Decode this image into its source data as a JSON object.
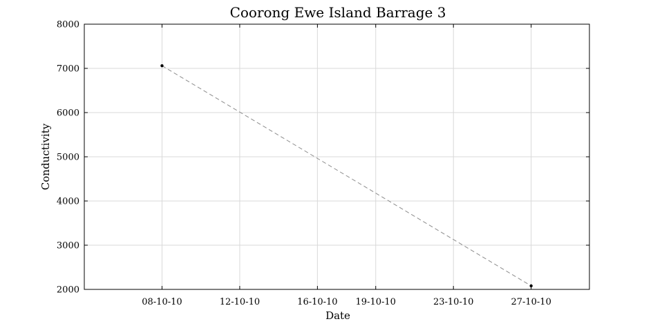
{
  "chart_data": {
    "type": "line",
    "title": "Coorong Ewe Island Barrage 3",
    "xlabel": "Date",
    "ylabel": "Conductivity",
    "x_ticks": [
      "08-10-10",
      "12-10-10",
      "16-10-10",
      "19-10-10",
      "23-10-10",
      "27-10-10"
    ],
    "xlim": [
      "2010-10-04",
      "2010-10-30"
    ],
    "ylim": [
      2000,
      8000
    ],
    "y_ticks": [
      2000,
      3000,
      4000,
      5000,
      6000,
      7000,
      8000
    ],
    "grid": true,
    "series": [
      {
        "x": [
          "2010-10-08",
          "2010-10-27"
        ],
        "y": [
          7060,
          2080
        ],
        "color": "#8c8c8c",
        "line_style": "dashed",
        "marker": "dot"
      }
    ]
  }
}
